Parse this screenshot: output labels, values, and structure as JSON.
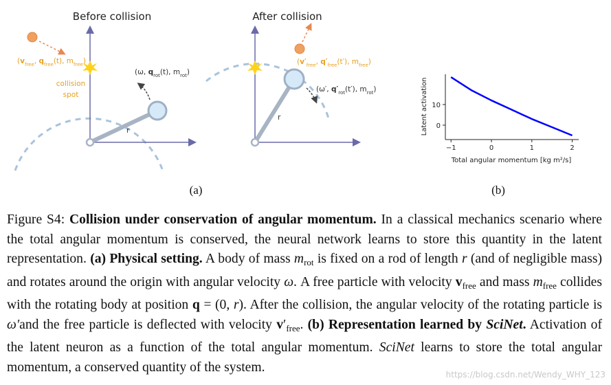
{
  "panel_a": {
    "label": "(a)",
    "before": {
      "title": "Before collision",
      "particle_label": [
        "(",
        "v",
        "free",
        ", ",
        "q",
        "free",
        "(t), m",
        "free",
        ")"
      ],
      "spot_label": [
        "collision",
        "spot"
      ],
      "rot_label": [
        "(ω, ",
        "q",
        "rot",
        "(t), m",
        "rot",
        ")"
      ],
      "rod_label": "r"
    },
    "after": {
      "title": "After collision",
      "particle_label": [
        "(",
        "v",
        "′",
        "free",
        ", ",
        "q",
        "′",
        "free",
        "(t′), m",
        "free",
        ")"
      ],
      "rot_label": [
        "(ω′, ",
        "q",
        "′",
        "rot",
        "(t′), m",
        "rot",
        ")"
      ],
      "rod_label": "r"
    }
  },
  "chart_data": {
    "type": "line",
    "panel_label": "(b)",
    "ylabel": "Latent activation",
    "xlabel": "Total angular momentum [kg m²/s]",
    "x": [
      -1,
      -0.5,
      0,
      0.5,
      1,
      1.5,
      2
    ],
    "values": [
      23.3,
      17,
      12,
      7.5,
      3,
      -1,
      -5
    ],
    "color": "#0000ff",
    "xlim": [
      -1.14,
      2.16
    ],
    "ylim": [
      -7,
      24.7
    ],
    "xticks": [
      {
        "value": -1,
        "label": "−1"
      },
      0,
      1,
      2
    ],
    "yticks": [
      0,
      10
    ]
  },
  "caption": [
    "Figure S4: ",
    "Collision under conservation of angular momentum.",
    " In a classical mechanics scenario where the total angular momentum is conserved, the neural network learns to store this quantity in the latent representation. ",
    "(a) Physical setting.",
    " A body of mass ",
    "m",
    "rot",
    " is fixed on a rod of length ",
    "r",
    " (and of negligible mass) and rotates around the origin with angular velocity ",
    "ω",
    ". A free particle with velocity ",
    "v",
    "free",
    " and mass ",
    "m",
    "free",
    " collides with the rotating body at position ",
    "q",
    " = (0, ",
    "r",
    "). After the collision, the angular velocity of the rotating particle is ",
    "ω′",
    "and the free particle is deflected with velocity ",
    "v",
    "′",
    "free",
    ". ",
    "(b) Representation learned by ",
    "SciNet",
    ".",
    " Activation of the latent neuron as a function of the total angular momentum. ",
    "SciNet",
    " learns to store the total angular momentum, a conserved quantity of the system."
  ],
  "watermark": "https://blog.csdn.net/Wendy_WHY_123"
}
